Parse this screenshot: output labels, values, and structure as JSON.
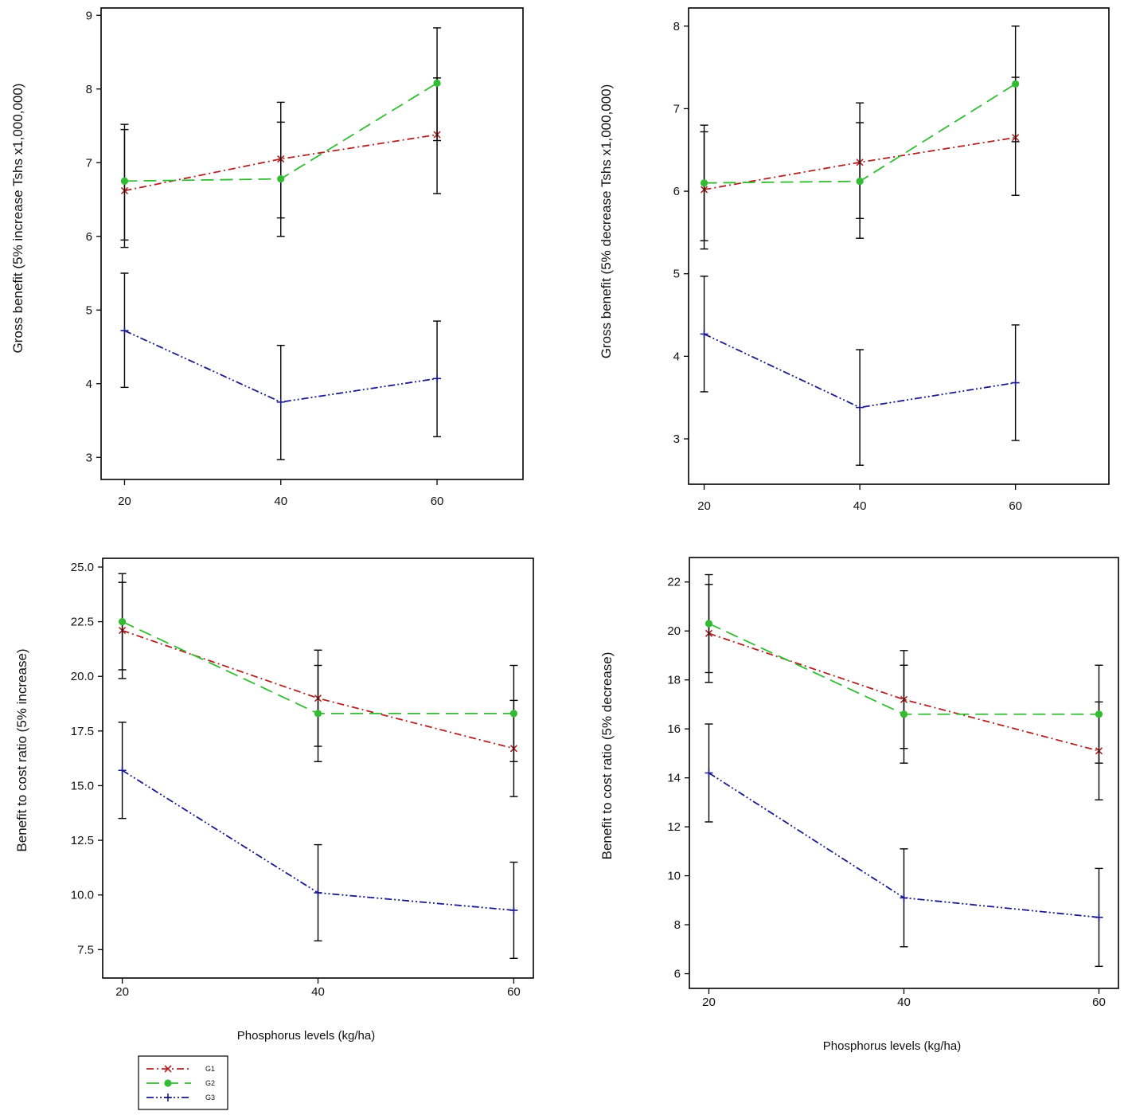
{
  "legend": {
    "entries": [
      {
        "name": "G1",
        "color": "#b22222",
        "marker": "x",
        "dash": "dashdot"
      },
      {
        "name": "G2",
        "color": "#33bb33",
        "marker": "dot",
        "dash": "dash"
      },
      {
        "name": "G3",
        "color": "#1a1a8c",
        "marker": "plus",
        "dash": "dashdotdot"
      }
    ]
  },
  "chart_data": [
    {
      "type": "line",
      "ylabel": "Gross benefit (5% increase Tshs x1,000,000)",
      "xlabel": "",
      "x": [
        20,
        40,
        60
      ],
      "yticks": [
        "3",
        "4",
        "5",
        "6",
        "7",
        "8",
        "9"
      ],
      "ytick_values": [
        3,
        4,
        5,
        6,
        7,
        8,
        9
      ],
      "ylim": [
        2.7,
        9.1
      ],
      "xlim": [
        17,
        71
      ],
      "series": [
        {
          "name": "G1",
          "values": [
            6.62,
            7.05,
            7.38
          ],
          "err_low": [
            5.85,
            6.25,
            6.58
          ],
          "err_high": [
            7.45,
            7.82,
            8.15
          ]
        },
        {
          "name": "G2",
          "values": [
            6.75,
            6.78,
            8.08
          ],
          "err_low": [
            5.95,
            6.0,
            7.3
          ],
          "err_high": [
            7.52,
            7.55,
            8.83
          ]
        },
        {
          "name": "G3",
          "values": [
            4.72,
            3.75,
            4.07
          ],
          "err_low": [
            3.95,
            2.97,
            3.28
          ],
          "err_high": [
            5.5,
            4.52,
            4.85
          ]
        }
      ]
    },
    {
      "type": "line",
      "ylabel": "Gross benefit (5% decrease Tshs x1,000,000)",
      "xlabel": "",
      "x": [
        20,
        40,
        60
      ],
      "yticks": [
        "3",
        "4",
        "5",
        "6",
        "7",
        "8"
      ],
      "ytick_values": [
        3,
        4,
        5,
        6,
        7,
        8
      ],
      "ylim": [
        2.45,
        8.22
      ],
      "xlim": [
        18,
        72
      ],
      "series": [
        {
          "name": "G1",
          "values": [
            6.02,
            6.35,
            6.65
          ],
          "err_low": [
            5.3,
            5.67,
            5.95
          ],
          "err_high": [
            6.72,
            7.07,
            7.38
          ]
        },
        {
          "name": "G2",
          "values": [
            6.1,
            6.12,
            7.3
          ],
          "err_low": [
            5.4,
            5.43,
            6.6
          ],
          "err_high": [
            6.8,
            6.83,
            8.0
          ]
        },
        {
          "name": "G3",
          "values": [
            4.27,
            3.38,
            3.68
          ],
          "err_low": [
            3.57,
            2.68,
            2.98
          ],
          "err_high": [
            4.97,
            4.08,
            4.38
          ]
        }
      ]
    },
    {
      "type": "line",
      "ylabel": "Benefit to cost ratio (5% increase)",
      "xlabel": "Phosphorus levels (kg/ha)",
      "x": [
        20,
        40,
        60
      ],
      "yticks": [
        "7.5",
        "10.0",
        "12.5",
        "15.0",
        "17.5",
        "20.0",
        "22.5",
        "25.0"
      ],
      "ytick_values": [
        7.5,
        10,
        12.5,
        15,
        17.5,
        20,
        22.5,
        25
      ],
      "ylim": [
        6.2,
        25.4
      ],
      "xlim": [
        18,
        62
      ],
      "series": [
        {
          "name": "G1",
          "values": [
            22.1,
            19.0,
            16.7
          ],
          "err_low": [
            19.9,
            16.8,
            14.5
          ],
          "err_high": [
            24.3,
            21.2,
            18.9
          ]
        },
        {
          "name": "G2",
          "values": [
            22.5,
            18.3,
            18.3
          ],
          "err_low": [
            20.3,
            16.1,
            16.1
          ],
          "err_high": [
            24.7,
            20.5,
            20.5
          ]
        },
        {
          "name": "G3",
          "values": [
            15.7,
            10.1,
            9.3
          ],
          "err_low": [
            13.5,
            7.9,
            7.1
          ],
          "err_high": [
            17.9,
            12.3,
            11.5
          ]
        }
      ]
    },
    {
      "type": "line",
      "ylabel": "Benefit to cost ratio (5% decrease)",
      "xlabel": "Phosphorus levels (kg/ha)",
      "x": [
        20,
        40,
        60
      ],
      "yticks": [
        "6",
        "8",
        "10",
        "12",
        "14",
        "16",
        "18",
        "20",
        "22"
      ],
      "ytick_values": [
        6,
        8,
        10,
        12,
        14,
        16,
        18,
        20,
        22
      ],
      "ylim": [
        5.4,
        23.0
      ],
      "xlim": [
        18,
        62
      ],
      "series": [
        {
          "name": "G1",
          "values": [
            19.9,
            17.2,
            15.1
          ],
          "err_low": [
            17.9,
            15.2,
            13.1
          ],
          "err_high": [
            21.9,
            19.2,
            17.1
          ]
        },
        {
          "name": "G2",
          "values": [
            20.3,
            16.6,
            16.6
          ],
          "err_low": [
            18.3,
            14.6,
            14.6
          ],
          "err_high": [
            22.3,
            18.6,
            18.6
          ]
        },
        {
          "name": "G3",
          "values": [
            14.2,
            9.1,
            8.3
          ],
          "err_low": [
            12.2,
            7.1,
            6.3
          ],
          "err_high": [
            16.2,
            11.1,
            10.3
          ]
        }
      ]
    }
  ]
}
